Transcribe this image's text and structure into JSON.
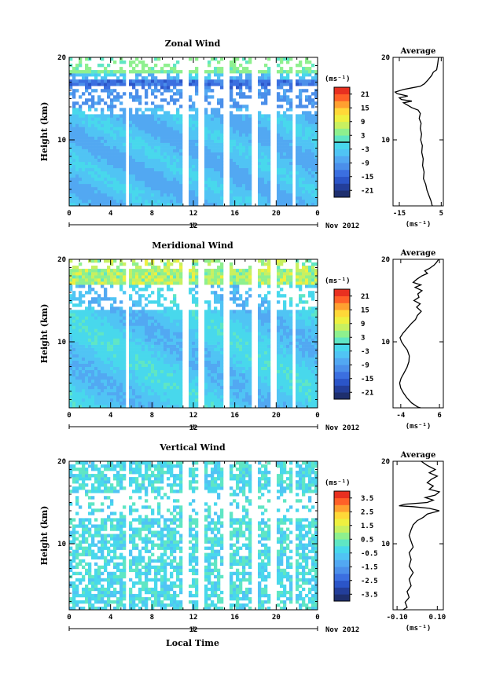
{
  "chart_data": [
    {
      "type": "heatmap",
      "title": "Zonal Wind",
      "ylabel": "Height (km)",
      "units": "(ms⁻¹)",
      "xlim": [
        0,
        24
      ],
      "ylim": [
        2,
        20
      ],
      "x_ticks": [
        "0",
        "4",
        "8",
        "12",
        "16",
        "20",
        "0"
      ],
      "y_ticks": [
        "10",
        "20"
      ],
      "date_tick": "12",
      "date_label": "Nov 2012",
      "colorbar_ticks": [
        "21",
        "15",
        "9",
        "3",
        "-3",
        "-9",
        "-15",
        "-21"
      ],
      "colorbar_range": [
        -24,
        24
      ],
      "zero_line_value": 0,
      "gaps_hours": [
        5.6,
        11.2,
        12.7,
        15.3,
        18.0,
        19.8,
        21.7
      ],
      "profile": [
        [
          3.7,
          20
        ],
        [
          3.3,
          19.2
        ],
        [
          2.8,
          18.5
        ],
        [
          1.2,
          18.2
        ],
        [
          0.4,
          17.8
        ],
        [
          -1.2,
          17.3
        ],
        [
          -3,
          16.8
        ],
        [
          -5,
          16.5
        ],
        [
          -9,
          16.3
        ],
        [
          -13,
          16.1
        ],
        [
          -17,
          15.8
        ],
        [
          -16,
          15.6
        ],
        [
          -11,
          15.3
        ],
        [
          -15,
          15.1
        ],
        [
          -14,
          14.9
        ],
        [
          -9,
          14.7
        ],
        [
          -13,
          14.5
        ],
        [
          -11,
          14.2
        ],
        [
          -9,
          13.9
        ],
        [
          -6,
          13.6
        ],
        [
          -5,
          13.2
        ],
        [
          -5.5,
          12.6
        ],
        [
          -4.6,
          12.0
        ],
        [
          -5.0,
          11.4
        ],
        [
          -4.4,
          10.7
        ],
        [
          -4.8,
          10.0
        ],
        [
          -4.0,
          9.3
        ],
        [
          -4.3,
          8.5
        ],
        [
          -3.6,
          7.7
        ],
        [
          -3.9,
          6.9
        ],
        [
          -3.2,
          6.1
        ],
        [
          -3.5,
          5.3
        ],
        [
          -2.4,
          4.6
        ],
        [
          -1.8,
          3.9
        ],
        [
          -0.8,
          3.2
        ],
        [
          0.1,
          2.6
        ],
        [
          0.6,
          2.1
        ],
        [
          0.8,
          1.8
        ]
      ],
      "profile_title": "Average",
      "profile_xticks": [
        "-15",
        "5"
      ],
      "profile_xlim": [
        -18,
        6
      ],
      "profile_xlabel": "(ms⁻¹)",
      "profile_yticks": [
        "10",
        "20"
      ]
    },
    {
      "type": "heatmap",
      "title": "Meridional Wind",
      "ylabel": "Height (km)",
      "units": "(ms⁻¹)",
      "xlim": [
        0,
        24
      ],
      "ylim": [
        2,
        20
      ],
      "x_ticks": [
        "0",
        "4",
        "8",
        "12",
        "16",
        "20",
        "0"
      ],
      "y_ticks": [
        "10",
        "20"
      ],
      "date_tick": "12",
      "date_label": "Nov 2012",
      "colorbar_ticks": [
        "21",
        "15",
        "9",
        "3",
        "-3",
        "-9",
        "-15",
        "-21"
      ],
      "colorbar_range": [
        -24,
        24
      ],
      "zero_line_value": 0,
      "gaps_hours": [
        5.6,
        11.2,
        12.7,
        15.3,
        18.0,
        19.8,
        21.7
      ],
      "profile": [
        [
          5.8,
          20
        ],
        [
          5.2,
          19.6
        ],
        [
          4.6,
          19.3
        ],
        [
          3.4,
          18.9
        ],
        [
          2.2,
          18.6
        ],
        [
          2.9,
          18.3
        ],
        [
          1.5,
          18.0
        ],
        [
          0.2,
          17.6
        ],
        [
          -0.8,
          17.2
        ],
        [
          1.2,
          16.9
        ],
        [
          -0.3,
          16.6
        ],
        [
          1.5,
          16.2
        ],
        [
          0.4,
          15.8
        ],
        [
          0.7,
          15.4
        ],
        [
          -0.6,
          15.0
        ],
        [
          1.0,
          14.6
        ],
        [
          0.1,
          14.2
        ],
        [
          1.3,
          13.7
        ],
        [
          0.3,
          13.2
        ],
        [
          -0.2,
          12.7
        ],
        [
          -1.3,
          12.2
        ],
        [
          -2.4,
          11.6
        ],
        [
          -3.5,
          11.0
        ],
        [
          -4.2,
          10.5
        ],
        [
          -3.8,
          10.0
        ],
        [
          -3.1,
          9.5
        ],
        [
          -2.3,
          9.0
        ],
        [
          -1.8,
          8.3
        ],
        [
          -1.9,
          7.6
        ],
        [
          -2.4,
          6.9
        ],
        [
          -3.2,
          6.2
        ],
        [
          -3.9,
          5.6
        ],
        [
          -4.3,
          5.0
        ],
        [
          -4.0,
          4.4
        ],
        [
          -3.3,
          3.8
        ],
        [
          -2.4,
          3.2
        ],
        [
          -1.2,
          2.6
        ],
        [
          0.4,
          2.1
        ],
        [
          1.1,
          1.8
        ]
      ],
      "profile_title": "Average",
      "profile_xticks": [
        "-4",
        "6"
      ],
      "profile_xlim": [
        -6,
        7
      ],
      "profile_xlabel": "(ms⁻¹)",
      "profile_yticks": [
        "10",
        "20"
      ]
    },
    {
      "type": "heatmap",
      "title": "Vertical Wind",
      "ylabel": "Height (km)",
      "xlabel": "Local Time",
      "units": "(ms⁻¹)",
      "xlim": [
        0,
        24
      ],
      "ylim": [
        2,
        20
      ],
      "x_ticks": [
        "0",
        "4",
        "8",
        "12",
        "16",
        "20",
        "0"
      ],
      "y_ticks": [
        "10",
        "20"
      ],
      "date_tick": "12",
      "date_label": "Nov 2012",
      "colorbar_ticks": [
        "3.5",
        "2.5",
        "1.5",
        "0.5",
        "-0.5",
        "-1.5",
        "-2.5",
        "-3.5"
      ],
      "colorbar_range": [
        -4,
        4
      ],
      "gaps_hours": [
        5.6,
        11.2,
        12.7,
        15.3,
        18.0,
        19.8,
        21.7
      ],
      "profile": [
        [
          0.02,
          20
        ],
        [
          0.05,
          19.5
        ],
        [
          0.09,
          19.0
        ],
        [
          0.06,
          18.6
        ],
        [
          0.1,
          18.2
        ],
        [
          0.07,
          17.8
        ],
        [
          0.05,
          17.4
        ],
        [
          0.08,
          17.0
        ],
        [
          0.06,
          16.6
        ],
        [
          0.11,
          16.3
        ],
        [
          0.09,
          15.9
        ],
        [
          0.04,
          15.6
        ],
        [
          0.08,
          15.3
        ],
        [
          0.05,
          15.0
        ],
        [
          -0.06,
          14.8
        ],
        [
          -0.09,
          14.6
        ],
        [
          -0.02,
          14.5
        ],
        [
          0.06,
          14.3
        ],
        [
          0.11,
          14.0
        ],
        [
          0.05,
          13.6
        ],
        [
          0.03,
          13.2
        ],
        [
          0.0,
          12.8
        ],
        [
          -0.02,
          12.3
        ],
        [
          -0.03,
          11.7
        ],
        [
          -0.04,
          11.0
        ],
        [
          -0.03,
          10.3
        ],
        [
          -0.02,
          9.6
        ],
        [
          -0.04,
          8.9
        ],
        [
          -0.03,
          8.1
        ],
        [
          -0.04,
          7.3
        ],
        [
          -0.02,
          6.5
        ],
        [
          -0.04,
          5.7
        ],
        [
          -0.03,
          4.9
        ],
        [
          -0.05,
          4.2
        ],
        [
          -0.04,
          3.5
        ],
        [
          -0.06,
          2.9
        ],
        [
          -0.05,
          2.3
        ],
        [
          -0.07,
          1.8
        ]
      ],
      "profile_title": "Average",
      "profile_xticks": [
        "-0.10",
        "0.10"
      ],
      "profile_xlim": [
        -0.12,
        0.13
      ],
      "profile_xlabel": "(ms⁻¹)",
      "profile_yticks": [
        "10",
        "20"
      ]
    }
  ],
  "colorscale": [
    "#1e2f6e",
    "#233e9a",
    "#2b55c8",
    "#3b6fe0",
    "#4b8fea",
    "#52a8f2",
    "#50c4f4",
    "#48d8ec",
    "#5fe6c4",
    "#8ef08e",
    "#c8f060",
    "#eef040",
    "#ffd838",
    "#ffa030",
    "#ff6028",
    "#e83020"
  ]
}
